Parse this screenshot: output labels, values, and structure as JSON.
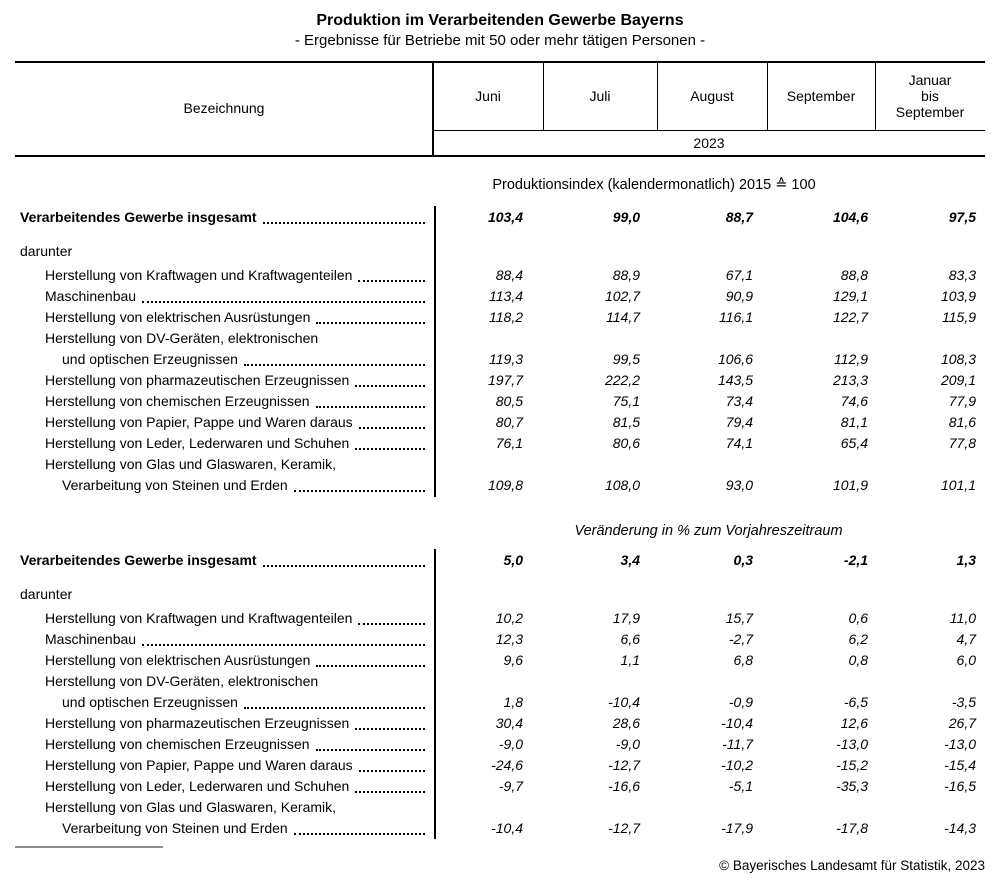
{
  "title": "Produktion im Verarbeitenden Gewerbe Bayerns",
  "subtitle": "- Ergebnisse für Betriebe mit 50 oder mehr tätigen Personen -",
  "header": {
    "label_column": "Bezeichnung",
    "columns": [
      "Juni",
      "Juli",
      "August",
      "September",
      "Januar\nbis\nSeptember"
    ],
    "year": "2023"
  },
  "sections": [
    {
      "heading": "Produktionsindex (kalendermonatlich) 2015 ≙ 100",
      "rows": [
        {
          "type": "total",
          "lines": [
            {
              "text": "Verarbeitendes Gewerbe insgesamt",
              "indent": 0,
              "leader": true
            }
          ],
          "values": [
            "103,4",
            "99,0",
            "88,7",
            "104,6",
            "97,5"
          ]
        },
        {
          "type": "note",
          "lines": [
            {
              "text": "darunter",
              "indent": 0,
              "leader": false
            }
          ],
          "values": []
        },
        {
          "type": "item",
          "lines": [
            {
              "text": "Herstellung von Kraftwagen und Kraftwagenteilen",
              "indent": 1,
              "leader": true
            }
          ],
          "values": [
            "88,4",
            "88,9",
            "67,1",
            "88,8",
            "83,3"
          ]
        },
        {
          "type": "item",
          "lines": [
            {
              "text": "Maschinenbau",
              "indent": 1,
              "leader": true
            }
          ],
          "values": [
            "113,4",
            "102,7",
            "90,9",
            "129,1",
            "103,9"
          ]
        },
        {
          "type": "item",
          "lines": [
            {
              "text": "Herstellung von elektrischen Ausrüstungen",
              "indent": 1,
              "leader": true
            }
          ],
          "values": [
            "118,2",
            "114,7",
            "116,1",
            "122,7",
            "115,9"
          ]
        },
        {
          "type": "item",
          "lines": [
            {
              "text": "Herstellung von DV-Geräten, elektronischen",
              "indent": 1,
              "leader": false
            },
            {
              "text": "und optischen Erzeugnissen",
              "indent": 2,
              "leader": true
            }
          ],
          "values": [
            "119,3",
            "99,5",
            "106,6",
            "112,9",
            "108,3"
          ]
        },
        {
          "type": "item",
          "lines": [
            {
              "text": "Herstellung von pharmazeutischen Erzeugnissen",
              "indent": 1,
              "leader": true
            }
          ],
          "values": [
            "197,7",
            "222,2",
            "143,5",
            "213,3",
            "209,1"
          ]
        },
        {
          "type": "item",
          "lines": [
            {
              "text": "Herstellung von chemischen Erzeugnissen",
              "indent": 1,
              "leader": true
            }
          ],
          "values": [
            "80,5",
            "75,1",
            "73,4",
            "74,6",
            "77,9"
          ]
        },
        {
          "type": "item",
          "lines": [
            {
              "text": "Herstellung von Papier, Pappe und Waren daraus",
              "indent": 1,
              "leader": true
            }
          ],
          "values": [
            "80,7",
            "81,5",
            "79,4",
            "81,1",
            "81,6"
          ]
        },
        {
          "type": "item",
          "lines": [
            {
              "text": "Herstellung von Leder, Lederwaren und Schuhen",
              "indent": 1,
              "leader": true
            }
          ],
          "values": [
            "76,1",
            "80,6",
            "74,1",
            "65,4",
            "77,8"
          ]
        },
        {
          "type": "item",
          "lines": [
            {
              "text": "Herstellung von Glas und Glaswaren, Keramik,",
              "indent": 1,
              "leader": false
            },
            {
              "text": "Verarbeitung von Steinen und Erden",
              "indent": 2,
              "leader": true
            }
          ],
          "values": [
            "109,8",
            "108,0",
            "93,0",
            "101,9",
            "101,1"
          ]
        }
      ]
    },
    {
      "heading": "Veränderung in % zum Vorjahreszeitraum",
      "rows": [
        {
          "type": "total",
          "lines": [
            {
              "text": "Verarbeitendes Gewerbe insgesamt",
              "indent": 0,
              "leader": true
            }
          ],
          "values": [
            "5,0",
            "3,4",
            "0,3",
            "-2,1",
            "1,3"
          ]
        },
        {
          "type": "note",
          "lines": [
            {
              "text": "darunter",
              "indent": 0,
              "leader": false
            }
          ],
          "values": []
        },
        {
          "type": "item",
          "lines": [
            {
              "text": "Herstellung von Kraftwagen und Kraftwagenteilen",
              "indent": 1,
              "leader": true
            }
          ],
          "values": [
            "10,2",
            "17,9",
            "15,7",
            "0,6",
            "11,0"
          ]
        },
        {
          "type": "item",
          "lines": [
            {
              "text": "Maschinenbau",
              "indent": 1,
              "leader": true
            }
          ],
          "values": [
            "12,3",
            "6,6",
            "-2,7",
            "6,2",
            "4,7"
          ]
        },
        {
          "type": "item",
          "lines": [
            {
              "text": "Herstellung von elektrischen Ausrüstungen",
              "indent": 1,
              "leader": true
            }
          ],
          "values": [
            "9,6",
            "1,1",
            "6,8",
            "0,8",
            "6,0"
          ]
        },
        {
          "type": "item",
          "lines": [
            {
              "text": "Herstellung von DV-Geräten, elektronischen",
              "indent": 1,
              "leader": false
            },
            {
              "text": "und optischen Erzeugnissen",
              "indent": 2,
              "leader": true
            }
          ],
          "values": [
            "1,8",
            "-10,4",
            "-0,9",
            "-6,5",
            "-3,5"
          ]
        },
        {
          "type": "item",
          "lines": [
            {
              "text": "Herstellung von pharmazeutischen Erzeugnissen",
              "indent": 1,
              "leader": true
            }
          ],
          "values": [
            "30,4",
            "28,6",
            "-10,4",
            "12,6",
            "26,7"
          ]
        },
        {
          "type": "item",
          "lines": [
            {
              "text": "Herstellung von chemischen Erzeugnissen",
              "indent": 1,
              "leader": true
            }
          ],
          "values": [
            "-9,0",
            "-9,0",
            "-11,7",
            "-13,0",
            "-13,0"
          ]
        },
        {
          "type": "item",
          "lines": [
            {
              "text": "Herstellung von Papier, Pappe und Waren daraus",
              "indent": 1,
              "leader": true
            }
          ],
          "values": [
            "-24,6",
            "-12,7",
            "-10,2",
            "-15,2",
            "-15,4"
          ]
        },
        {
          "type": "item",
          "lines": [
            {
              "text": "Herstellung von Leder, Lederwaren und Schuhen",
              "indent": 1,
              "leader": true
            }
          ],
          "values": [
            "-9,7",
            "-16,6",
            "-5,1",
            "-35,3",
            "-16,5"
          ]
        },
        {
          "type": "item",
          "lines": [
            {
              "text": "Herstellung von Glas und Glaswaren, Keramik,",
              "indent": 1,
              "leader": false
            },
            {
              "text": "Verarbeitung von Steinen und Erden",
              "indent": 2,
              "leader": true
            }
          ],
          "values": [
            "-10,4",
            "-12,7",
            "-17,9",
            "-17,8",
            "-14,3"
          ]
        }
      ]
    }
  ],
  "footer": "© Bayerisches Landesamt für Statistik, 2023"
}
